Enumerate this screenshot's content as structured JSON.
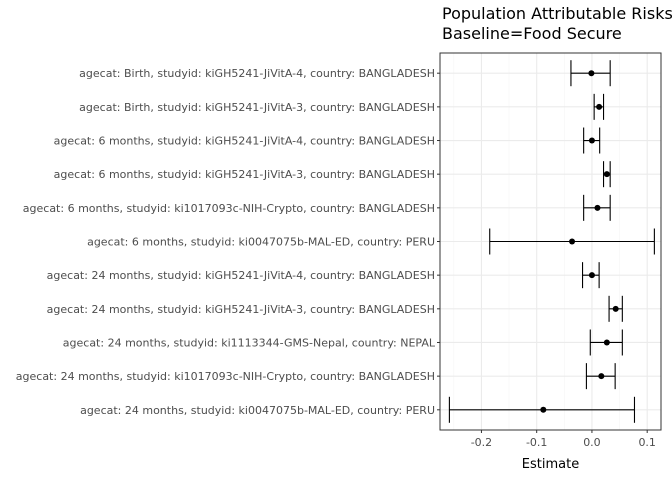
{
  "chart_data": {
    "type": "forest",
    "title": "Population Attributable Risks",
    "subtitle": "Baseline=Food Secure",
    "xlabel": "Estimate",
    "ylabel": "",
    "xlim": [
      -0.275,
      0.125
    ],
    "xticks": [
      -0.2,
      -0.1,
      0.0,
      0.1
    ],
    "xtick_labels": [
      "-0.2",
      "-0.1",
      "0.0",
      "0.1"
    ],
    "grid": true,
    "categories": [
      "agecat: Birth, studyid: kiGH5241-JiVitA-4, country: BANGLADESH",
      "agecat: Birth, studyid: kiGH5241-JiVitA-3, country: BANGLADESH",
      "agecat: 6 months, studyid: kiGH5241-JiVitA-4, country: BANGLADESH",
      "agecat: 6 months, studyid: kiGH5241-JiVitA-3, country: BANGLADESH",
      "agecat: 6 months, studyid: ki1017093c-NIH-Crypto, country: BANGLADESH",
      "agecat: 6 months, studyid: ki0047075b-MAL-ED, country: PERU",
      "agecat: 24 months, studyid: kiGH5241-JiVitA-4, country: BANGLADESH",
      "agecat: 24 months, studyid: kiGH5241-JiVitA-3, country: BANGLADESH",
      "agecat: 24 months, studyid: ki1113344-GMS-Nepal, country: NEPAL",
      "agecat: 24 months, studyid: ki1017093c-NIH-Crypto, country: BANGLADESH",
      "agecat: 24 months, studyid: ki0047075b-MAL-ED, country: PERU"
    ],
    "estimates": [
      -0.001,
      0.013,
      0.0,
      0.027,
      0.01,
      -0.036,
      0.0,
      0.043,
      0.027,
      0.017,
      -0.088
    ],
    "lower": [
      -0.038,
      0.004,
      -0.015,
      0.021,
      -0.015,
      -0.185,
      -0.017,
      0.031,
      -0.003,
      -0.01,
      -0.258
    ],
    "upper": [
      0.033,
      0.021,
      0.014,
      0.033,
      0.033,
      0.113,
      0.013,
      0.055,
      0.055,
      0.042,
      0.077
    ],
    "colors": {
      "panel_border": "#333333",
      "grid_major": "#ebebeb",
      "grid_minor": "#f5f5f5",
      "point": "#000000",
      "tick": "#333333"
    }
  }
}
